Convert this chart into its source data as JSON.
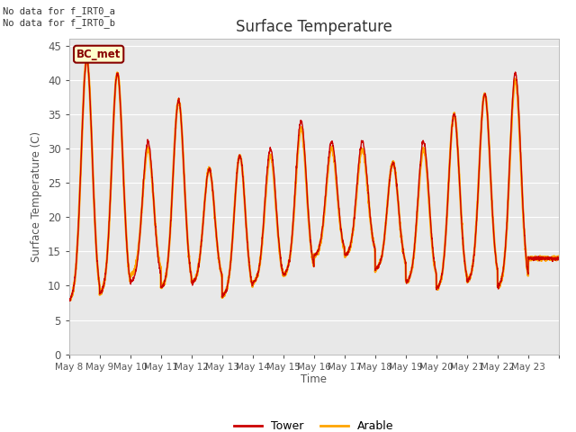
{
  "title": "Surface Temperature",
  "ylabel": "Surface Temperature (C)",
  "xlabel": "Time",
  "ylim": [
    0,
    46
  ],
  "yticks": [
    0,
    5,
    10,
    15,
    20,
    25,
    30,
    35,
    40,
    45
  ],
  "annotation_text": "No data for f_IRT0_a\nNo data for f_IRT0_b",
  "bc_met_label": "BC_met",
  "tower_color": "#cc0000",
  "arable_color": "#ffa500",
  "bg_color": "#e8e8e8",
  "grid_color": "#ffffff",
  "x_tick_labels": [
    "May 8",
    "May 9",
    "May 10",
    "May 11",
    "May 12",
    "May 13",
    "May 14",
    "May 15",
    "May 16",
    "May 17",
    "May 18",
    "May 19",
    "May 20",
    "May 21",
    "May 22",
    "May 23"
  ],
  "days": 16,
  "points_per_day": 144,
  "day_maxima_arable": [
    43,
    41,
    30,
    37,
    27,
    29,
    29,
    33,
    30,
    30,
    28,
    30,
    35,
    38,
    40,
    14
  ],
  "day_minima_arable": [
    7,
    8,
    11,
    9,
    10,
    8,
    10,
    11,
    14,
    14,
    12,
    10,
    9,
    10,
    9,
    14
  ],
  "day_maxima_tower": [
    43,
    41,
    31,
    37,
    27,
    29,
    30,
    34,
    31,
    31,
    28,
    31,
    35,
    38,
    41,
    14
  ],
  "day_minima_tower": [
    7,
    8,
    10,
    9,
    10,
    8,
    10,
    11,
    14,
    14,
    12,
    10,
    9,
    10,
    9,
    14
  ],
  "peak_positions": [
    0.58,
    0.58,
    0.58,
    0.58,
    0.58,
    0.58,
    0.58,
    0.58,
    0.58,
    0.58,
    0.58,
    0.58,
    0.58,
    0.58,
    0.58,
    0.58
  ],
  "figsize": [
    6.4,
    4.8
  ],
  "dpi": 100
}
